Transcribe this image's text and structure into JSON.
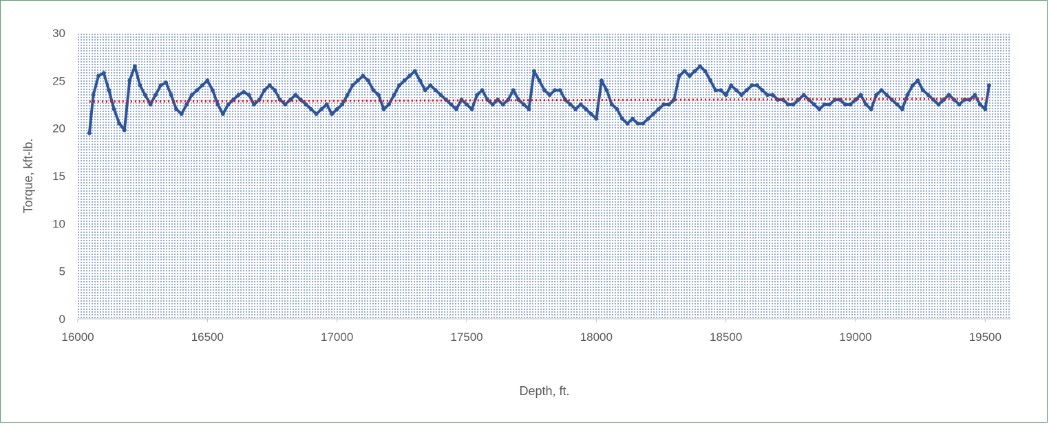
{
  "chart_data": {
    "type": "line",
    "title": "",
    "xlabel": "Depth, ft.",
    "ylabel": "Torque, kft-lb.",
    "xlim": [
      16000,
      19600
    ],
    "ylim": [
      0,
      30
    ],
    "xticks": [
      16000,
      16500,
      17000,
      17500,
      18000,
      18500,
      19000,
      19500
    ],
    "yticks": [
      0,
      5,
      10,
      15,
      20,
      25,
      30
    ],
    "x_tick_labels": [
      "16000",
      "16500",
      "17000",
      "17500",
      "18000",
      "18500",
      "19000",
      "19500"
    ],
    "y_tick_labels": [
      "0",
      "5",
      "10",
      "15",
      "20",
      "25",
      "30"
    ],
    "grid": false,
    "legend": "none",
    "plot_background": "dotted blue",
    "series": [
      {
        "style": "noisy line with markers",
        "color": "#2f5597",
        "x": [
          16045,
          16060,
          16080,
          16100,
          16120,
          16140,
          16160,
          16180,
          16200,
          16220,
          16240,
          16260,
          16280,
          16300,
          16320,
          16340,
          16360,
          16380,
          16400,
          16420,
          16440,
          16460,
          16480,
          16500,
          16520,
          16540,
          16560,
          16580,
          16600,
          16620,
          16640,
          16660,
          16680,
          16700,
          16720,
          16740,
          16760,
          16780,
          16800,
          16820,
          16840,
          16860,
          16880,
          16900,
          16920,
          16940,
          16960,
          16980,
          17000,
          17020,
          17040,
          17060,
          17080,
          17100,
          17120,
          17140,
          17160,
          17180,
          17200,
          17220,
          17240,
          17260,
          17280,
          17300,
          17320,
          17340,
          17360,
          17380,
          17400,
          17420,
          17440,
          17460,
          17480,
          17500,
          17520,
          17540,
          17560,
          17580,
          17600,
          17620,
          17640,
          17660,
          17680,
          17700,
          17720,
          17740,
          17760,
          17780,
          17800,
          17820,
          17840,
          17860,
          17880,
          17900,
          17920,
          17940,
          17960,
          17980,
          18000,
          18020,
          18040,
          18060,
          18080,
          18100,
          18120,
          18140,
          18160,
          18180,
          18200,
          18220,
          18240,
          18260,
          18280,
          18300,
          18320,
          18340,
          18360,
          18380,
          18400,
          18420,
          18440,
          18460,
          18480,
          18500,
          18520,
          18540,
          18560,
          18580,
          18600,
          18620,
          18640,
          18660,
          18680,
          18700,
          18720,
          18740,
          18760,
          18780,
          18800,
          18820,
          18840,
          18860,
          18880,
          18900,
          18920,
          18940,
          18960,
          18980,
          19000,
          19020,
          19040,
          19060,
          19080,
          19100,
          19120,
          19140,
          19160,
          19180,
          19200,
          19220,
          19240,
          19260,
          19280,
          19300,
          19320,
          19340,
          19360,
          19380,
          19400,
          19420,
          19440,
          19460,
          19480,
          19500,
          19515
        ],
        "y": [
          19.5,
          23.5,
          25.5,
          25.8,
          24.0,
          22.0,
          20.5,
          19.8,
          25.0,
          26.5,
          24.5,
          23.5,
          22.5,
          23.5,
          24.5,
          24.8,
          23.5,
          22.0,
          21.5,
          22.5,
          23.5,
          24.0,
          24.5,
          25.0,
          24.0,
          22.5,
          21.5,
          22.5,
          23.0,
          23.5,
          23.8,
          23.5,
          22.5,
          23.0,
          24.0,
          24.5,
          24.0,
          23.0,
          22.5,
          23.0,
          23.5,
          23.0,
          22.5,
          22.0,
          21.5,
          22.0,
          22.5,
          21.5,
          22.0,
          22.5,
          23.5,
          24.5,
          25.0,
          25.5,
          25.0,
          24.0,
          23.5,
          22.0,
          22.5,
          23.5,
          24.5,
          25.0,
          25.5,
          26.0,
          25.0,
          24.0,
          24.5,
          24.0,
          23.5,
          23.0,
          22.5,
          22.0,
          23.0,
          22.5,
          22.0,
          23.5,
          24.0,
          23.0,
          22.5,
          23.0,
          22.5,
          23.0,
          24.0,
          23.0,
          22.5,
          22.0,
          26.0,
          25.0,
          24.0,
          23.5,
          24.0,
          24.0,
          23.0,
          22.5,
          22.0,
          22.5,
          22.0,
          21.5,
          21.0,
          25.0,
          24.0,
          22.5,
          22.0,
          21.0,
          20.5,
          21.0,
          20.5,
          20.5,
          21.0,
          21.5,
          22.0,
          22.5,
          22.5,
          23.0,
          25.5,
          26.0,
          25.5,
          26.0,
          26.5,
          26.0,
          25.0,
          24.0,
          24.0,
          23.5,
          24.5,
          24.0,
          23.5,
          24.0,
          24.5,
          24.5,
          24.0,
          23.5,
          23.5,
          23.0,
          23.0,
          22.5,
          22.5,
          23.0,
          23.5,
          23.0,
          22.5,
          22.0,
          22.5,
          22.5,
          23.0,
          23.0,
          22.5,
          22.5,
          23.0,
          23.5,
          22.5,
          22.0,
          23.5,
          24.0,
          23.5,
          23.0,
          22.5,
          22.0,
          23.5,
          24.5,
          25.0,
          24.0,
          23.5,
          23.0,
          22.5,
          23.0,
          23.5,
          23.0,
          22.5,
          23.0,
          23.0,
          23.5,
          22.5,
          22.0,
          24.5
        ]
      },
      {
        "style": "dotted trend line",
        "color": "#ff0000",
        "x": [
          16045,
          19515
        ],
        "y": [
          22.8,
          23.1
        ]
      }
    ]
  }
}
